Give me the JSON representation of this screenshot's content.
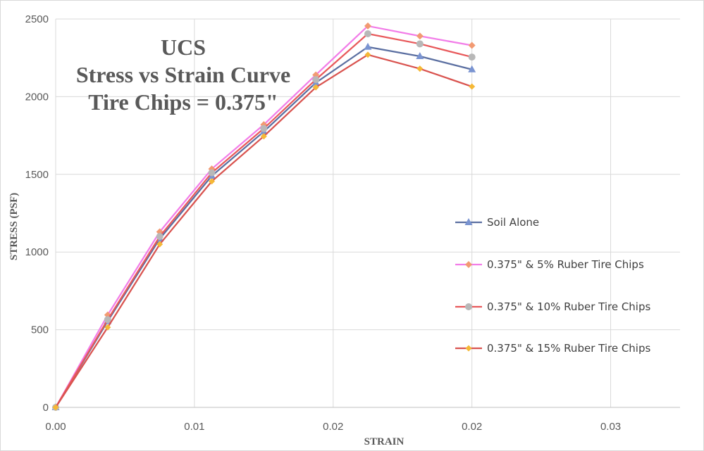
{
  "chart_data": {
    "type": "line",
    "title_lines": [
      "UCS",
      "Stress vs Strain Curve",
      "Tire Chips = 0.375\""
    ],
    "xlabel": "STRAIN",
    "ylabel": "STRESS (PSF)",
    "xlim": [
      0,
      0.03
    ],
    "ylim": [
      0,
      2500
    ],
    "x_tick_labels": [
      "0.00",
      "0.01",
      "0.01",
      "0.01",
      "0.02",
      "0.02",
      "0.02",
      "0.03",
      "0.03",
      "0.03"
    ],
    "y_tick_labels": [
      "0",
      "500",
      "1000",
      "1500",
      "2000",
      "2500"
    ],
    "grid": true,
    "legend_position": "right",
    "x": [
      0,
      0.0025,
      0.005,
      0.0075,
      0.01,
      0.0125,
      0.015,
      0.0175,
      0.02
    ],
    "series": [
      {
        "name": "Soil Alone",
        "color": "#5b6fa1",
        "marker_color": "#7a94d1",
        "marker": "triangle",
        "values": [
          0,
          555,
          1085,
          1490,
          1775,
          2090,
          2320,
          2260,
          2175
        ]
      },
      {
        "name": "0.375\" & 5% Ruber Tire Chips",
        "color": "#f27de8",
        "marker_color": "#f29a72",
        "marker": "diamond",
        "values": [
          0,
          595,
          1130,
          1535,
          1820,
          2140,
          2455,
          2390,
          2330
        ]
      },
      {
        "name": "0.375\" & 10% Ruber Tire Chips",
        "color": "#e8595b",
        "marker_color": "#b8b8b8",
        "marker": "circle",
        "values": [
          0,
          565,
          1100,
          1510,
          1795,
          2110,
          2405,
          2340,
          2255
        ]
      },
      {
        "name": "0.375\" & 15% Ruber Tire Chips",
        "color": "#d9534f",
        "marker_color": "#f5b836",
        "marker": "diamond-small",
        "values": [
          0,
          515,
          1050,
          1455,
          1745,
          2060,
          2270,
          2180,
          2065
        ]
      }
    ]
  }
}
